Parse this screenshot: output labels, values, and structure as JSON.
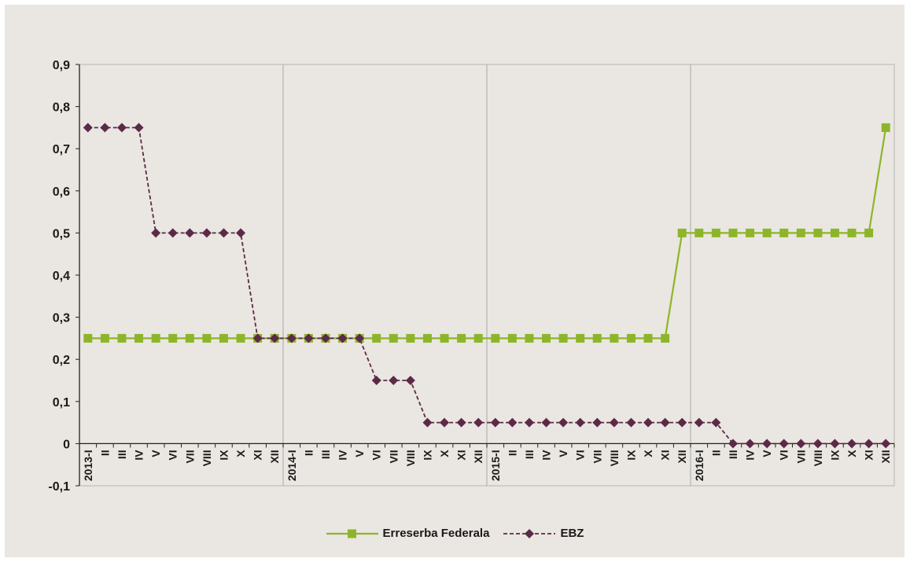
{
  "chart_data": {
    "type": "line",
    "title": "",
    "xlabel": "",
    "ylabel": "",
    "ylim": [
      -0.1,
      0.9
    ],
    "yticks": [
      "0,9",
      "0,8",
      "0,7",
      "0,6",
      "0,5",
      "0,4",
      "0,3",
      "0,2",
      "0,1",
      "0",
      "-0,1"
    ],
    "grid": "vertical at year boundaries",
    "legend_position": "bottom",
    "categories": [
      "2013-I",
      "II",
      "III",
      "IV",
      "V",
      "VI",
      "VII",
      "VIII",
      "IX",
      "X",
      "XI",
      "XII",
      "2014-I",
      "II",
      "III",
      "IV",
      "V",
      "VI",
      "VII",
      "VIII",
      "IX",
      "X",
      "XI",
      "XII",
      "2015-I",
      "II",
      "III",
      "IV",
      "V",
      "VI",
      "VII",
      "VIII",
      "IX",
      "X",
      "XI",
      "XII",
      "2016-I",
      "II",
      "III",
      "IV",
      "V",
      "VI",
      "VII",
      "VIII",
      "IX",
      "X",
      "XI",
      "XII"
    ],
    "series": [
      {
        "name": "Erreserba Federala",
        "color": "#8db52a",
        "marker": "square",
        "line": "solid",
        "values": [
          0.25,
          0.25,
          0.25,
          0.25,
          0.25,
          0.25,
          0.25,
          0.25,
          0.25,
          0.25,
          0.25,
          0.25,
          0.25,
          0.25,
          0.25,
          0.25,
          0.25,
          0.25,
          0.25,
          0.25,
          0.25,
          0.25,
          0.25,
          0.25,
          0.25,
          0.25,
          0.25,
          0.25,
          0.25,
          0.25,
          0.25,
          0.25,
          0.25,
          0.25,
          0.25,
          0.5,
          0.5,
          0.5,
          0.5,
          0.5,
          0.5,
          0.5,
          0.5,
          0.5,
          0.5,
          0.5,
          0.5,
          0.75
        ]
      },
      {
        "name": "EBZ",
        "color": "#5b2a47",
        "marker": "diamond",
        "line": "dashed",
        "values": [
          0.75,
          0.75,
          0.75,
          0.75,
          0.5,
          0.5,
          0.5,
          0.5,
          0.5,
          0.5,
          0.25,
          0.25,
          0.25,
          0.25,
          0.25,
          0.25,
          0.25,
          0.15,
          0.15,
          0.15,
          0.05,
          0.05,
          0.05,
          0.05,
          0.05,
          0.05,
          0.05,
          0.05,
          0.05,
          0.05,
          0.05,
          0.05,
          0.05,
          0.05,
          0.05,
          0.05,
          0.05,
          0.05,
          0,
          0,
          0,
          0,
          0,
          0,
          0,
          0,
          0,
          0
        ]
      }
    ]
  }
}
